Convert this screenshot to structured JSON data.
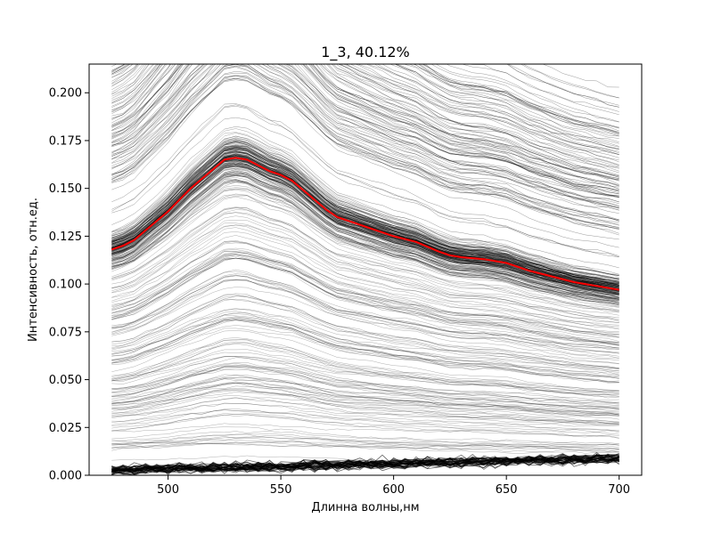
{
  "chart_data": {
    "type": "line",
    "title": "1_3, 40.12%",
    "xlabel": "Длинна волны,нм",
    "ylabel": "Интенсивность, отн.ед.",
    "xlim": [
      465,
      710
    ],
    "ylim": [
      0.0,
      0.215
    ],
    "x_ticks": [
      500,
      550,
      600,
      650,
      700
    ],
    "x_tick_labels": [
      "500",
      "550",
      "600",
      "650",
      "700"
    ],
    "y_ticks": [
      0.0,
      0.025,
      0.05,
      0.075,
      0.1,
      0.125,
      0.15,
      0.175,
      0.2
    ],
    "y_tick_labels": [
      "0.000",
      "0.025",
      "0.050",
      "0.075",
      "0.100",
      "0.125",
      "0.150",
      "0.175",
      "0.200"
    ],
    "grid": false,
    "legend": "none",
    "colors": {
      "mean_line": "#ff0000",
      "spectra": "#000000"
    },
    "series": [
      {
        "x": [
          475,
          480,
          485,
          490,
          495,
          500,
          505,
          510,
          515,
          520,
          525,
          530,
          535,
          540,
          545,
          550,
          555,
          560,
          565,
          570,
          575,
          580,
          590,
          600,
          610,
          620,
          625,
          630,
          640,
          650,
          660,
          670,
          680,
          690,
          700
        ],
        "values": [
          0.118,
          0.12,
          0.123,
          0.128,
          0.133,
          0.138,
          0.144,
          0.15,
          0.155,
          0.16,
          0.165,
          0.166,
          0.165,
          0.162,
          0.159,
          0.157,
          0.154,
          0.149,
          0.144,
          0.139,
          0.135,
          0.133,
          0.129,
          0.125,
          0.122,
          0.117,
          0.115,
          0.114,
          0.113,
          0.111,
          0.107,
          0.104,
          0.101,
          0.099,
          0.097
        ],
        "color": "#ff0000"
      }
    ]
  }
}
